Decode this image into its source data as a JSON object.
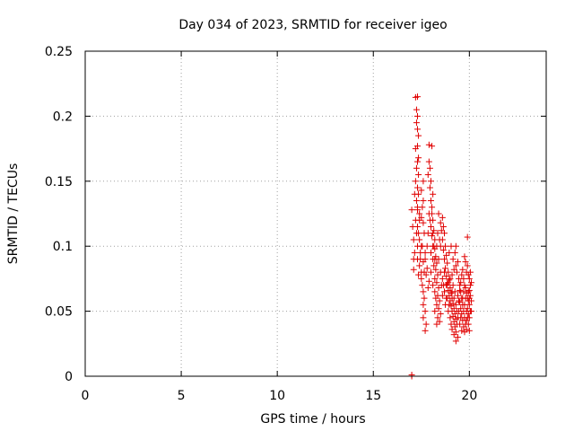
{
  "chart_data": {
    "type": "scatter",
    "title": "Day 034 of 2023, SRMTID for receiver igeo",
    "xlabel": "GPS time / hours",
    "ylabel": "SRMTID / TECUs",
    "xlim": [
      0,
      24
    ],
    "ylim": [
      0,
      0.25
    ],
    "xticks": [
      0,
      5,
      10,
      15,
      20
    ],
    "yticks": [
      0,
      0.05,
      0.1,
      0.15,
      0.2,
      0.25
    ],
    "xtick_labels": [
      "0",
      "5",
      "10",
      "15",
      "20"
    ],
    "ytick_labels": [
      "0",
      "0.05",
      "0.1",
      "0.15",
      "0.2",
      "0.25"
    ],
    "grid": true,
    "marker": "plus",
    "color": "#e00000",
    "points": [
      [
        17.0,
        0.0
      ],
      [
        17.0,
        0.001
      ],
      [
        17.0,
        0.128
      ],
      [
        17.05,
        0.115
      ],
      [
        17.1,
        0.09
      ],
      [
        17.1,
        0.082
      ],
      [
        17.15,
        0.095
      ],
      [
        17.1,
        0.105
      ],
      [
        17.2,
        0.2145
      ],
      [
        17.3,
        0.215
      ],
      [
        17.25,
        0.205
      ],
      [
        17.3,
        0.2
      ],
      [
        17.3,
        0.19
      ],
      [
        17.25,
        0.195
      ],
      [
        17.35,
        0.185
      ],
      [
        17.3,
        0.177
      ],
      [
        17.2,
        0.175
      ],
      [
        17.35,
        0.168
      ],
      [
        17.3,
        0.165
      ],
      [
        17.25,
        0.16
      ],
      [
        17.35,
        0.155
      ],
      [
        17.2,
        0.15
      ],
      [
        17.3,
        0.145
      ],
      [
        17.35,
        0.14
      ],
      [
        17.25,
        0.135
      ],
      [
        17.3,
        0.128
      ],
      [
        17.4,
        0.125
      ],
      [
        17.2,
        0.12
      ],
      [
        17.3,
        0.115
      ],
      [
        17.35,
        0.11
      ],
      [
        17.4,
        0.105
      ],
      [
        17.3,
        0.1
      ],
      [
        17.45,
        0.095
      ],
      [
        17.3,
        0.09
      ],
      [
        17.4,
        0.085
      ],
      [
        17.5,
        0.08
      ],
      [
        17.35,
        0.078
      ],
      [
        17.5,
        0.075
      ],
      [
        17.55,
        0.07
      ],
      [
        17.6,
        0.065
      ],
      [
        17.65,
        0.06
      ],
      [
        17.6,
        0.055
      ],
      [
        17.7,
        0.05
      ],
      [
        17.6,
        0.045
      ],
      [
        17.75,
        0.04
      ],
      [
        17.7,
        0.035
      ],
      [
        17.6,
        0.15
      ],
      [
        17.5,
        0.143
      ],
      [
        17.6,
        0.135
      ],
      [
        17.55,
        0.13
      ],
      [
        17.5,
        0.122
      ],
      [
        17.6,
        0.118
      ],
      [
        17.65,
        0.11
      ],
      [
        17.55,
        0.1
      ],
      [
        17.7,
        0.095
      ],
      [
        17.6,
        0.088
      ],
      [
        17.8,
        0.083
      ],
      [
        17.75,
        0.078
      ],
      [
        17.9,
        0.073
      ],
      [
        17.85,
        0.068
      ],
      [
        17.9,
        0.178
      ],
      [
        18.05,
        0.177
      ],
      [
        17.9,
        0.165
      ],
      [
        17.95,
        0.16
      ],
      [
        17.85,
        0.155
      ],
      [
        18.0,
        0.15
      ],
      [
        17.95,
        0.145
      ],
      [
        18.1,
        0.14
      ],
      [
        18.0,
        0.135
      ],
      [
        18.05,
        0.13
      ],
      [
        17.9,
        0.125
      ],
      [
        18.1,
        0.12
      ],
      [
        18.0,
        0.115
      ],
      [
        18.15,
        0.112
      ],
      [
        18.05,
        0.108
      ],
      [
        18.2,
        0.105
      ],
      [
        18.1,
        0.1
      ],
      [
        18.2,
        0.098
      ],
      [
        18.0,
        0.095
      ],
      [
        18.25,
        0.092
      ],
      [
        18.1,
        0.09
      ],
      [
        18.3,
        0.087
      ],
      [
        18.15,
        0.085
      ],
      [
        18.25,
        0.082
      ],
      [
        18.0,
        0.08
      ],
      [
        18.35,
        0.078
      ],
      [
        18.2,
        0.075
      ],
      [
        18.3,
        0.072
      ],
      [
        18.1,
        0.07
      ],
      [
        18.4,
        0.068
      ],
      [
        18.2,
        0.065
      ],
      [
        18.35,
        0.062
      ],
      [
        18.25,
        0.06
      ],
      [
        18.45,
        0.058
      ],
      [
        18.3,
        0.055
      ],
      [
        18.4,
        0.052
      ],
      [
        18.2,
        0.05
      ],
      [
        18.5,
        0.048
      ],
      [
        18.35,
        0.045
      ],
      [
        18.45,
        0.042
      ],
      [
        18.3,
        0.04
      ],
      [
        18.4,
        0.125
      ],
      [
        18.6,
        0.122
      ],
      [
        18.5,
        0.118
      ],
      [
        18.65,
        0.115
      ],
      [
        18.55,
        0.112
      ],
      [
        18.7,
        0.11
      ],
      [
        18.6,
        0.105
      ],
      [
        18.75,
        0.1
      ],
      [
        18.65,
        0.097
      ],
      [
        18.8,
        0.093
      ],
      [
        18.7,
        0.09
      ],
      [
        18.85,
        0.087
      ],
      [
        18.75,
        0.083
      ],
      [
        18.9,
        0.08
      ],
      [
        18.8,
        0.077
      ],
      [
        18.95,
        0.074
      ],
      [
        18.85,
        0.071
      ],
      [
        19.0,
        0.068
      ],
      [
        18.9,
        0.066
      ],
      [
        19.05,
        0.064
      ],
      [
        18.95,
        0.062
      ],
      [
        19.1,
        0.06
      ],
      [
        19.0,
        0.058
      ],
      [
        19.15,
        0.056
      ],
      [
        19.05,
        0.054
      ],
      [
        19.2,
        0.052
      ],
      [
        19.1,
        0.05
      ],
      [
        19.25,
        0.048
      ],
      [
        19.15,
        0.046
      ],
      [
        19.3,
        0.044
      ],
      [
        19.2,
        0.042
      ],
      [
        19.35,
        0.04
      ],
      [
        19.25,
        0.038
      ],
      [
        19.1,
        0.036
      ],
      [
        19.3,
        0.034
      ],
      [
        19.2,
        0.032
      ],
      [
        19.4,
        0.03
      ],
      [
        19.3,
        0.027
      ],
      [
        18.7,
        0.065
      ],
      [
        18.75,
        0.055
      ],
      [
        18.8,
        0.06
      ],
      [
        18.65,
        0.07
      ],
      [
        18.6,
        0.062
      ],
      [
        18.9,
        0.072
      ],
      [
        19.0,
        0.075
      ],
      [
        19.1,
        0.078
      ],
      [
        19.2,
        0.082
      ],
      [
        19.3,
        0.085
      ],
      [
        19.4,
        0.088
      ],
      [
        19.35,
        0.08
      ],
      [
        19.45,
        0.075
      ],
      [
        19.5,
        0.07
      ],
      [
        19.55,
        0.065
      ],
      [
        19.6,
        0.06
      ],
      [
        19.5,
        0.057
      ],
      [
        19.65,
        0.055
      ],
      [
        19.55,
        0.052
      ],
      [
        19.7,
        0.05
      ],
      [
        19.6,
        0.048
      ],
      [
        19.75,
        0.045
      ],
      [
        19.65,
        0.043
      ],
      [
        19.8,
        0.04
      ],
      [
        19.7,
        0.038
      ],
      [
        19.85,
        0.036
      ],
      [
        19.75,
        0.034
      ],
      [
        19.4,
        0.062
      ],
      [
        19.5,
        0.066
      ],
      [
        19.45,
        0.058
      ],
      [
        19.55,
        0.072
      ],
      [
        19.6,
        0.078
      ],
      [
        19.65,
        0.082
      ],
      [
        19.7,
        0.075
      ],
      [
        19.75,
        0.07
      ],
      [
        19.8,
        0.068
      ],
      [
        19.85,
        0.064
      ],
      [
        19.9,
        0.06
      ],
      [
        19.95,
        0.058
      ],
      [
        20.0,
        0.055
      ],
      [
        19.9,
        0.052
      ],
      [
        20.05,
        0.05
      ],
      [
        19.95,
        0.048
      ],
      [
        20.0,
        0.045
      ],
      [
        19.85,
        0.043
      ],
      [
        20.05,
        0.07
      ],
      [
        20.0,
        0.075
      ],
      [
        19.95,
        0.078
      ],
      [
        20.05,
        0.08
      ],
      [
        20.1,
        0.072
      ],
      [
        20.0,
        0.066
      ],
      [
        19.9,
        0.085
      ],
      [
        19.85,
        0.08
      ],
      [
        20.05,
        0.062
      ],
      [
        20.1,
        0.058
      ],
      [
        20.0,
        0.035
      ],
      [
        19.95,
        0.04
      ],
      [
        19.9,
        0.107
      ],
      [
        19.8,
        0.088
      ],
      [
        19.75,
        0.092
      ],
      [
        19.3,
        0.1
      ],
      [
        19.25,
        0.095
      ],
      [
        19.15,
        0.09
      ],
      [
        19.05,
        0.1
      ],
      [
        18.95,
        0.095
      ],
      [
        18.5,
        0.1
      ],
      [
        18.45,
        0.105
      ],
      [
        17.3,
        0.13
      ],
      [
        17.4,
        0.12
      ],
      [
        17.15,
        0.14
      ],
      [
        17.25,
        0.11
      ],
      [
        17.45,
        0.09
      ],
      [
        17.5,
        0.1
      ],
      [
        17.65,
        0.08
      ],
      [
        17.7,
        0.09
      ],
      [
        17.8,
        0.1
      ],
      [
        17.85,
        0.11
      ],
      [
        17.95,
        0.12
      ],
      [
        18.05,
        0.125
      ],
      [
        18.1,
        0.11
      ],
      [
        18.15,
        0.1
      ],
      [
        18.2,
        0.09
      ],
      [
        18.3,
        0.1
      ],
      [
        18.35,
        0.11
      ],
      [
        18.4,
        0.09
      ],
      [
        18.5,
        0.08
      ],
      [
        18.55,
        0.07
      ],
      [
        18.6,
        0.075
      ],
      [
        18.7,
        0.08
      ],
      [
        18.8,
        0.07
      ],
      [
        18.85,
        0.06
      ],
      [
        18.9,
        0.05
      ],
      [
        18.95,
        0.055
      ],
      [
        19.0,
        0.045
      ],
      [
        19.05,
        0.04
      ],
      [
        19.1,
        0.065
      ],
      [
        19.15,
        0.07
      ],
      [
        19.2,
        0.06
      ],
      [
        19.25,
        0.065
      ],
      [
        19.3,
        0.055
      ],
      [
        19.35,
        0.05
      ],
      [
        19.4,
        0.045
      ],
      [
        19.45,
        0.05
      ],
      [
        19.5,
        0.04
      ],
      [
        19.55,
        0.045
      ],
      [
        19.6,
        0.035
      ],
      [
        19.65,
        0.06
      ],
      [
        19.7,
        0.065
      ],
      [
        19.75,
        0.055
      ],
      [
        19.8,
        0.06
      ],
      [
        19.85,
        0.05
      ],
      [
        19.9,
        0.045
      ],
      [
        19.95,
        0.065
      ],
      [
        20.0,
        0.06
      ],
      [
        20.1,
        0.05
      ]
    ]
  }
}
